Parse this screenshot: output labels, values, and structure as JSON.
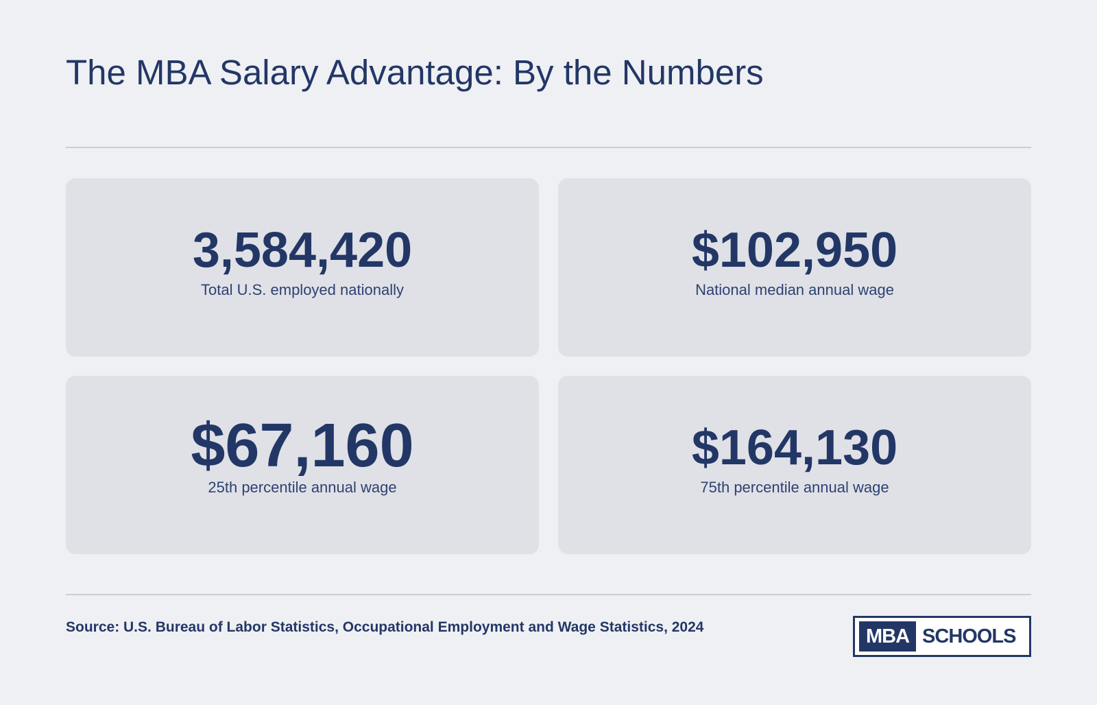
{
  "header": {
    "title": "The MBA Salary Advantage: By the Numbers"
  },
  "stats": [
    {
      "value": "3,584,420",
      "label": "Total U.S. employed nationally"
    },
    {
      "value": "$102,950",
      "label": "National median annual wage"
    },
    {
      "value": "$67,160",
      "label": "25th percentile annual wage"
    },
    {
      "value": "$164,130",
      "label": "75th percentile annual wage"
    }
  ],
  "footer": {
    "source": "Source: U.S. Bureau of Labor Statistics, Occupational Employment and Wage Statistics, 2024",
    "logo": {
      "part1": "MBA",
      "part2": "SCHOOLS"
    }
  },
  "colors": {
    "background": "#eff0f4",
    "card": "#dfe1e7",
    "brand_navy": "#233766",
    "divider": "#cbced6"
  }
}
